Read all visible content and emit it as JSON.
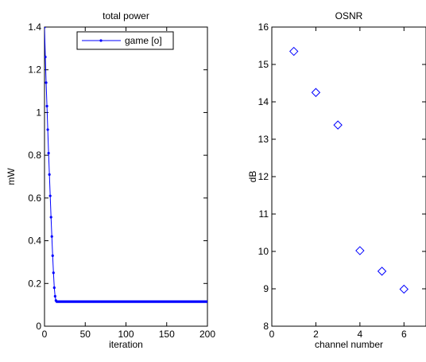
{
  "chart_data": [
    {
      "type": "line",
      "title": "total power",
      "xlabel": "iteration",
      "ylabel": "mW",
      "xlim": [
        0,
        200
      ],
      "ylim": [
        0,
        1.4
      ],
      "xticks": [
        "0",
        "50",
        "100",
        "150",
        "200"
      ],
      "yticks": [
        "0",
        "0.2",
        "0.4",
        "0.6",
        "0.8",
        "1",
        "1.2",
        "1.4"
      ],
      "grid": false,
      "legend_position": "top-right",
      "series": [
        {
          "name": "game [o]",
          "color": "#0000ff",
          "marker": "dot",
          "x": [
            0,
            1,
            2,
            3,
            4,
            5,
            6,
            7,
            8,
            9,
            10,
            11,
            12,
            13,
            14,
            15,
            20,
            30,
            50,
            75,
            100,
            125,
            150,
            175,
            200
          ],
          "y": [
            1.4,
            1.26,
            1.14,
            1.03,
            0.92,
            0.81,
            0.71,
            0.61,
            0.51,
            0.42,
            0.33,
            0.25,
            0.18,
            0.14,
            0.12,
            0.115,
            0.115,
            0.115,
            0.115,
            0.115,
            0.115,
            0.115,
            0.115,
            0.115,
            0.115
          ]
        }
      ]
    },
    {
      "type": "scatter",
      "title": "OSNR",
      "xlabel": "channel number",
      "ylabel": "dB",
      "xlim": [
        0,
        7
      ],
      "ylim": [
        8,
        16
      ],
      "xticks": [
        "0",
        "2",
        "4",
        "6"
      ],
      "yticks": [
        "8",
        "9",
        "10",
        "11",
        "12",
        "13",
        "14",
        "15",
        "16"
      ],
      "grid": false,
      "series": [
        {
          "color": "#0000ff",
          "marker": "diamond",
          "x": [
            1,
            2,
            3,
            4,
            5,
            6
          ],
          "y": [
            15.35,
            14.25,
            13.38,
            10.02,
            9.47,
            8.99
          ]
        }
      ]
    }
  ]
}
